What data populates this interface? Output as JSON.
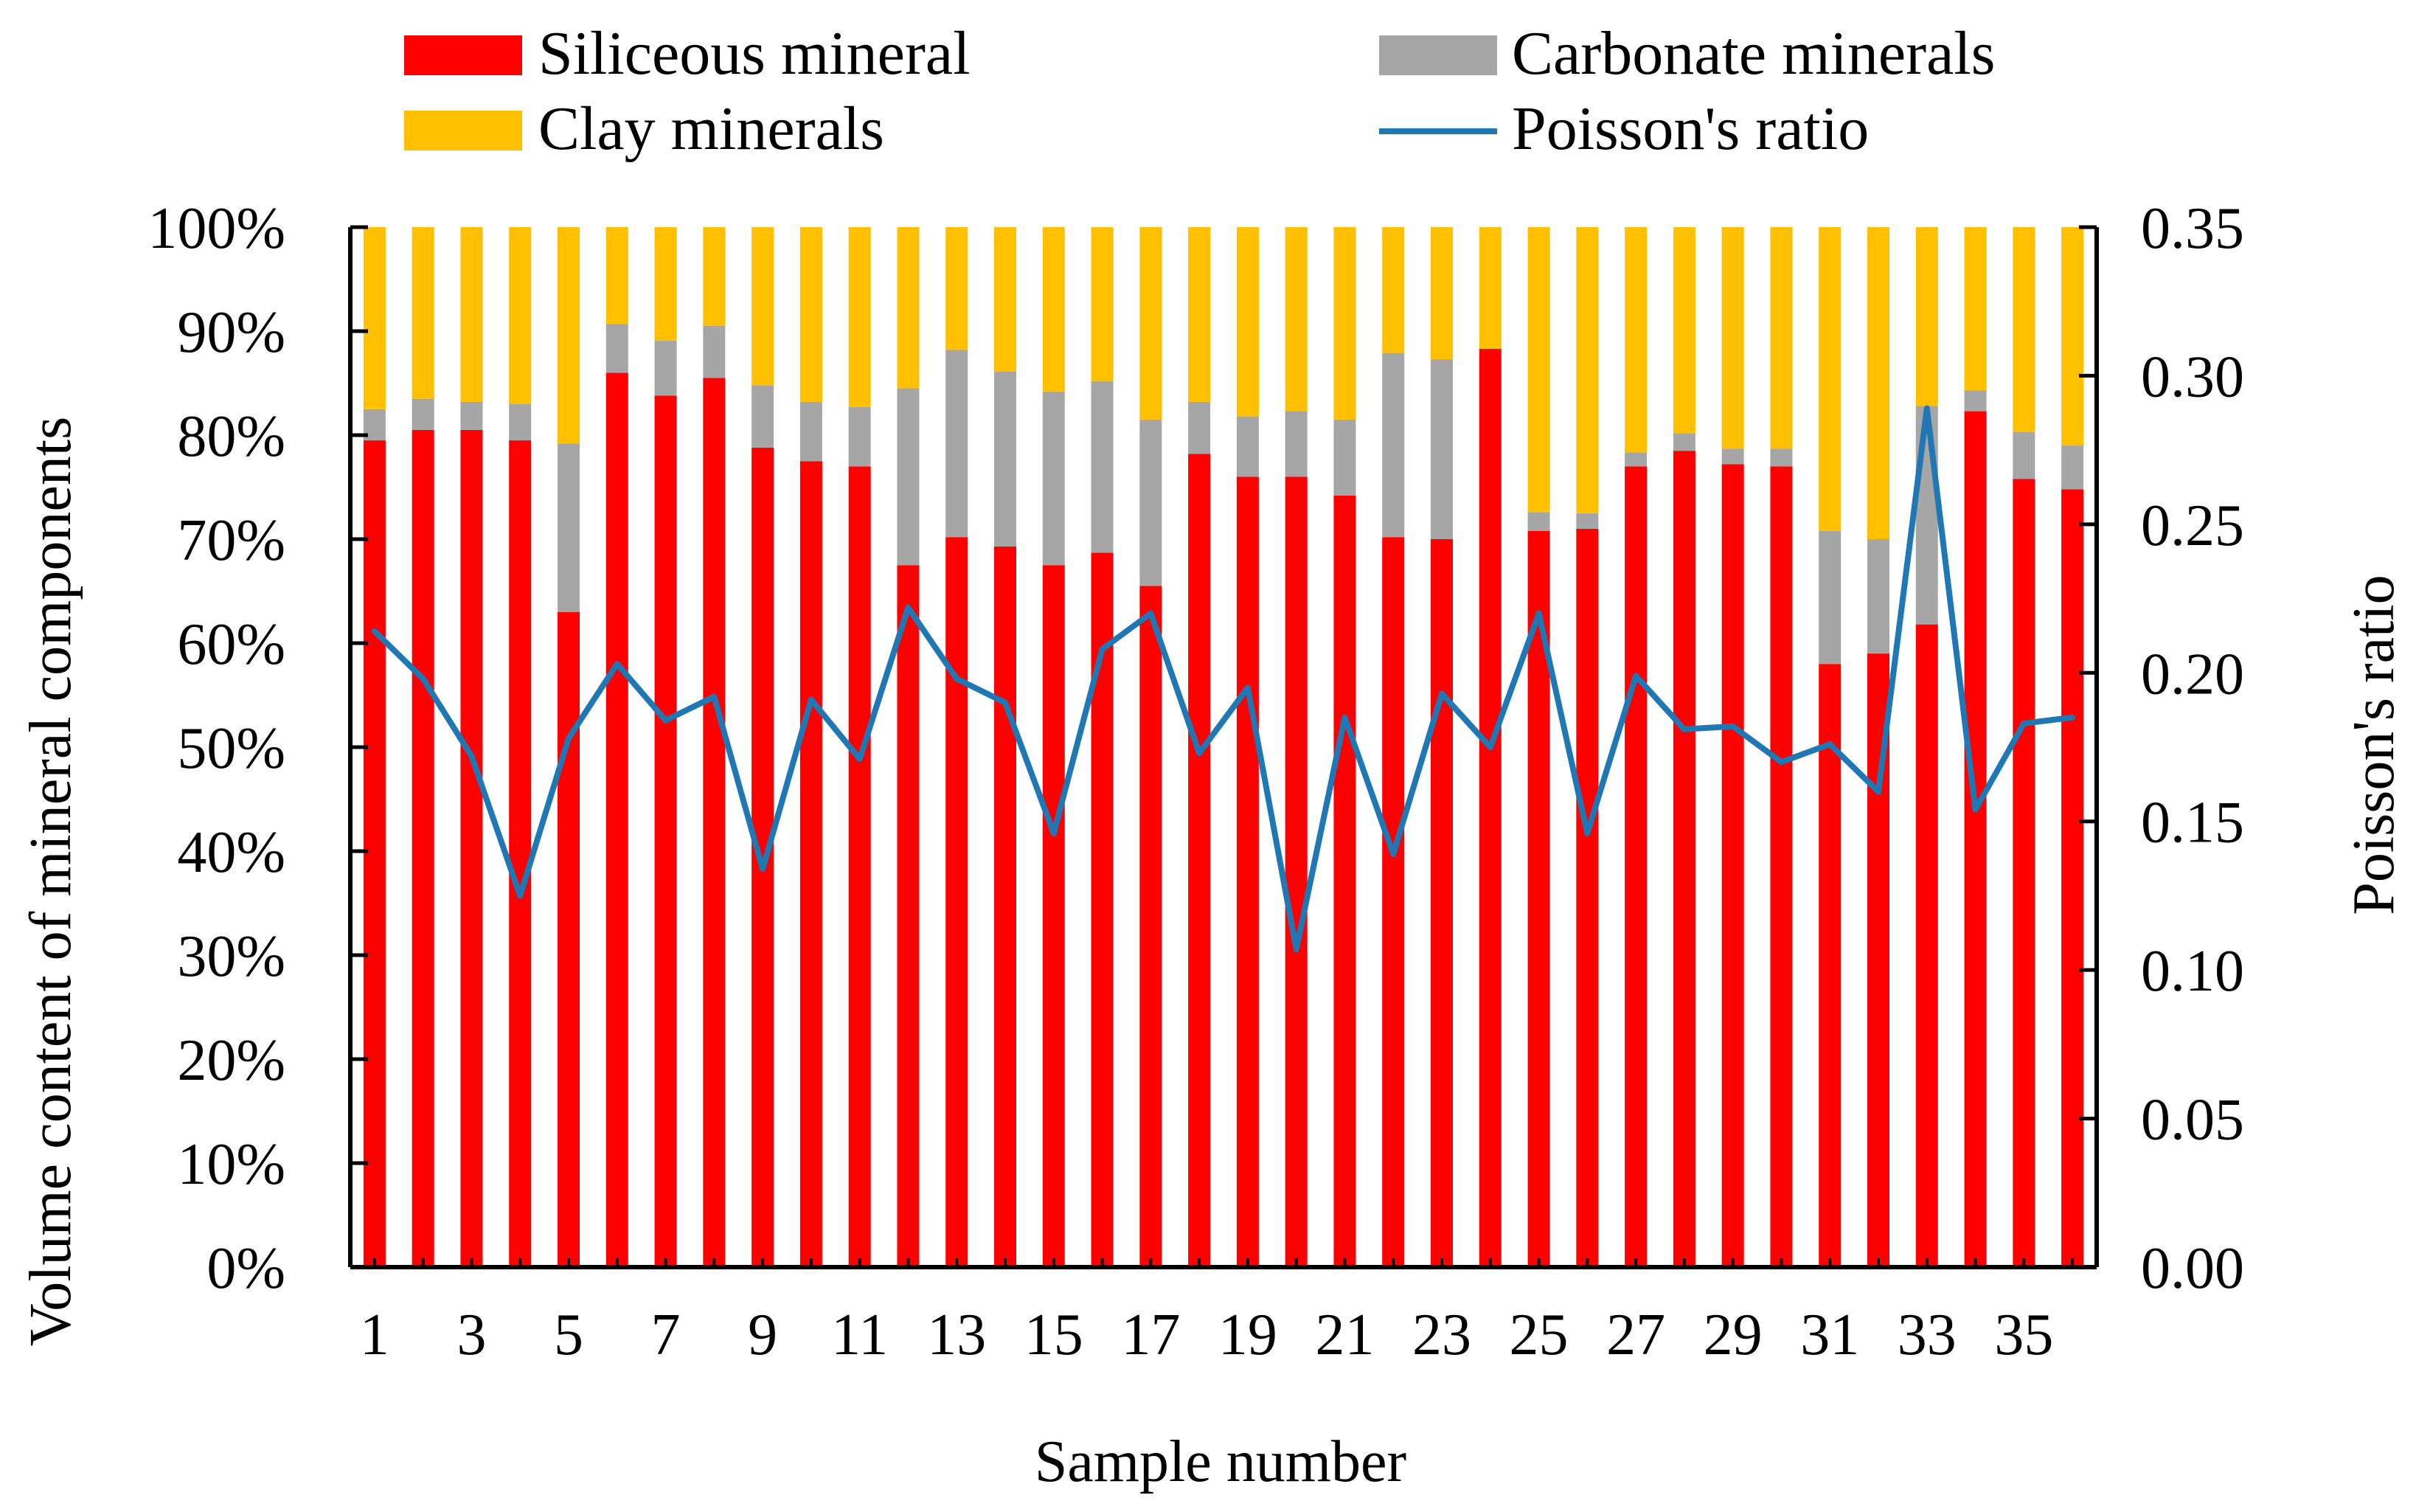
{
  "chart_data": {
    "type": "bar",
    "stacked": true,
    "xlabel": "Sample number",
    "ylabel": "Volume content of mineral components",
    "y2label": "Poisson's ratio",
    "ylim": [
      0,
      100
    ],
    "y2lim": [
      0,
      0.35
    ],
    "yticks": [
      "0%",
      "10%",
      "20%",
      "30%",
      "40%",
      "50%",
      "60%",
      "70%",
      "80%",
      "90%",
      "100%"
    ],
    "y2ticks": [
      "0.00",
      "0.05",
      "0.10",
      "0.15",
      "0.20",
      "0.25",
      "0.30",
      "0.35"
    ],
    "xtick_labels": [
      "1",
      "3",
      "5",
      "7",
      "9",
      "11",
      "13",
      "15",
      "17",
      "19",
      "21",
      "23",
      "25",
      "27",
      "29",
      "31",
      "33",
      "35"
    ],
    "categories": [
      "1",
      "2",
      "3",
      "4",
      "5",
      "6",
      "7",
      "8",
      "9",
      "10",
      "11",
      "12",
      "13",
      "14",
      "15",
      "16",
      "17",
      "18",
      "19",
      "20",
      "21",
      "22",
      "23",
      "24",
      "25",
      "26",
      "27",
      "28",
      "29",
      "30",
      "31",
      "32",
      "33",
      "34",
      "35",
      "36"
    ],
    "legend_position": "top",
    "series": [
      {
        "name": "Siliceous mineral",
        "kind": "bar",
        "color": "#ff0000",
        "values": [
          79.5,
          80.5,
          80.5,
          79.5,
          63.0,
          86.0,
          83.8,
          85.5,
          78.8,
          77.5,
          77.0,
          67.5,
          70.2,
          69.3,
          67.5,
          68.7,
          65.5,
          78.2,
          76.0,
          76.0,
          74.2,
          70.2,
          70.0,
          88.3,
          70.8,
          71.0,
          77.0,
          78.5,
          77.2,
          77.0,
          58.0,
          59.0,
          61.8,
          82.3,
          75.8,
          74.8
        ]
      },
      {
        "name": "Carbonate minerals",
        "kind": "bar",
        "color": "#a6a6a6",
        "values": [
          3.0,
          3.0,
          2.7,
          3.5,
          16.2,
          4.7,
          5.3,
          5.0,
          6.0,
          5.7,
          5.7,
          17.0,
          18.0,
          16.8,
          16.7,
          16.5,
          16.0,
          5.0,
          5.8,
          6.3,
          7.3,
          17.7,
          17.3,
          0.0,
          1.8,
          1.5,
          1.3,
          1.7,
          1.5,
          1.7,
          12.8,
          11.0,
          21.0,
          2.0,
          4.5,
          4.2
        ]
      },
      {
        "name": "Clay minerals",
        "kind": "bar",
        "color": "#ffc000",
        "values": [
          17.5,
          16.5,
          16.8,
          17.0,
          20.8,
          9.3,
          10.9,
          9.5,
          15.2,
          16.8,
          17.3,
          15.5,
          11.8,
          13.9,
          15.8,
          14.8,
          18.5,
          16.8,
          18.2,
          17.7,
          18.5,
          12.1,
          12.7,
          11.7,
          27.4,
          27.5,
          21.7,
          19.8,
          21.3,
          21.3,
          29.2,
          30.0,
          17.2,
          15.7,
          19.7,
          21.0
        ]
      },
      {
        "name": "Poisson's ratio",
        "kind": "line",
        "axis": "right",
        "color": "#1f77b4",
        "values": [
          0.214,
          0.198,
          0.172,
          0.125,
          0.178,
          0.203,
          0.184,
          0.192,
          0.134,
          0.191,
          0.171,
          0.222,
          0.198,
          0.19,
          0.146,
          0.208,
          0.22,
          0.173,
          0.195,
          0.107,
          0.185,
          0.139,
          0.193,
          0.175,
          0.22,
          0.146,
          0.199,
          0.181,
          0.182,
          0.17,
          0.176,
          0.16,
          0.289,
          0.154,
          0.183,
          0.185
        ]
      }
    ]
  }
}
